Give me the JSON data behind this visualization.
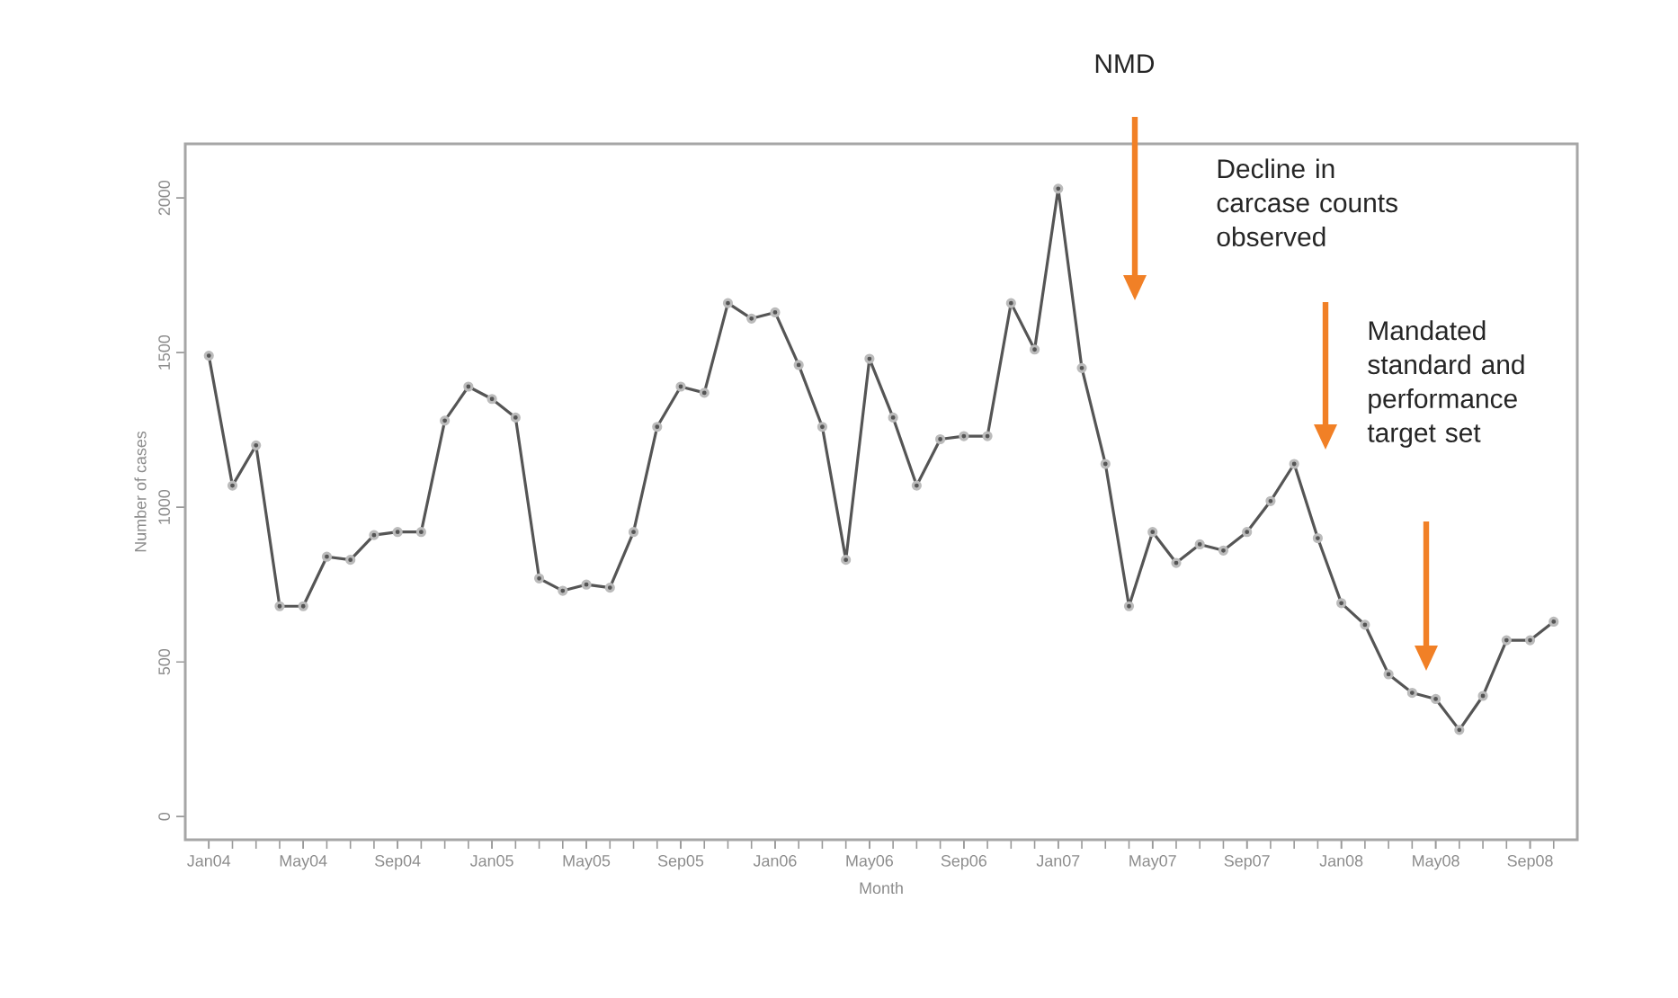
{
  "chart_data": {
    "type": "line",
    "xlabel": "Month",
    "ylabel": "Number of cases",
    "x": [
      "2004-01",
      "2004-02",
      "2004-03",
      "2004-04",
      "2004-05",
      "2004-06",
      "2004-07",
      "2004-08",
      "2004-09",
      "2004-10",
      "2004-11",
      "2004-12",
      "2005-01",
      "2005-02",
      "2005-03",
      "2005-04",
      "2005-05",
      "2005-06",
      "2005-07",
      "2005-08",
      "2005-09",
      "2005-10",
      "2005-11",
      "2005-12",
      "2006-01",
      "2006-02",
      "2006-03",
      "2006-04",
      "2006-05",
      "2006-06",
      "2006-07",
      "2006-08",
      "2006-09",
      "2006-10",
      "2006-11",
      "2006-12",
      "2007-01",
      "2007-02",
      "2007-03",
      "2007-04",
      "2007-05",
      "2007-06",
      "2007-07",
      "2007-08",
      "2007-09",
      "2007-10",
      "2007-11",
      "2007-12",
      "2008-01",
      "2008-02",
      "2008-03",
      "2008-04",
      "2008-05",
      "2008-06",
      "2008-07",
      "2008-08",
      "2008-09",
      "2008-10"
    ],
    "series": [
      {
        "color": "#555555",
        "values": [
          1490,
          1070,
          1200,
          680,
          680,
          840,
          830,
          910,
          920,
          920,
          1280,
          1390,
          1350,
          1290,
          770,
          730,
          750,
          740,
          920,
          1260,
          1390,
          1370,
          1660,
          1610,
          1630,
          1460,
          1260,
          830,
          1480,
          1290,
          1070,
          1220,
          1230,
          1230,
          1660,
          1510,
          2030,
          1450,
          1140,
          680,
          920,
          820,
          880,
          860,
          920,
          1020,
          1140,
          900,
          690,
          620,
          460,
          400,
          380,
          280,
          390,
          570,
          570,
          630
        ]
      }
    ],
    "xlim": [
      "2003-12",
      "2008-11"
    ],
    "xticks": [
      {
        "value": "2004-01",
        "label": "Jan04"
      },
      {
        "value": "2004-05",
        "label": "May04"
      },
      {
        "value": "2004-09",
        "label": "Sep04"
      },
      {
        "value": "2005-01",
        "label": "Jan05"
      },
      {
        "value": "2005-05",
        "label": "May05"
      },
      {
        "value": "2005-09",
        "label": "Sep05"
      },
      {
        "value": "2006-01",
        "label": "Jan06"
      },
      {
        "value": "2006-05",
        "label": "May06"
      },
      {
        "value": "2006-09",
        "label": "Sep06"
      },
      {
        "value": "2007-01",
        "label": "Jan07"
      },
      {
        "value": "2007-05",
        "label": "May07"
      },
      {
        "value": "2007-09",
        "label": "Sep07"
      },
      {
        "value": "2008-01",
        "label": "Jan08"
      },
      {
        "value": "2008-05",
        "label": "May08"
      },
      {
        "value": "2008-09",
        "label": "Sep08"
      }
    ],
    "ylim": [
      -75,
      2175
    ],
    "yticks": [
      0,
      500,
      1000,
      1500,
      2000
    ],
    "marker": "circle",
    "line_style": "solid",
    "grid": false,
    "legend": false,
    "annotations": [
      "NMD",
      "Decline in carcase counts observed",
      "Mandated standard and performance target set"
    ]
  }
}
